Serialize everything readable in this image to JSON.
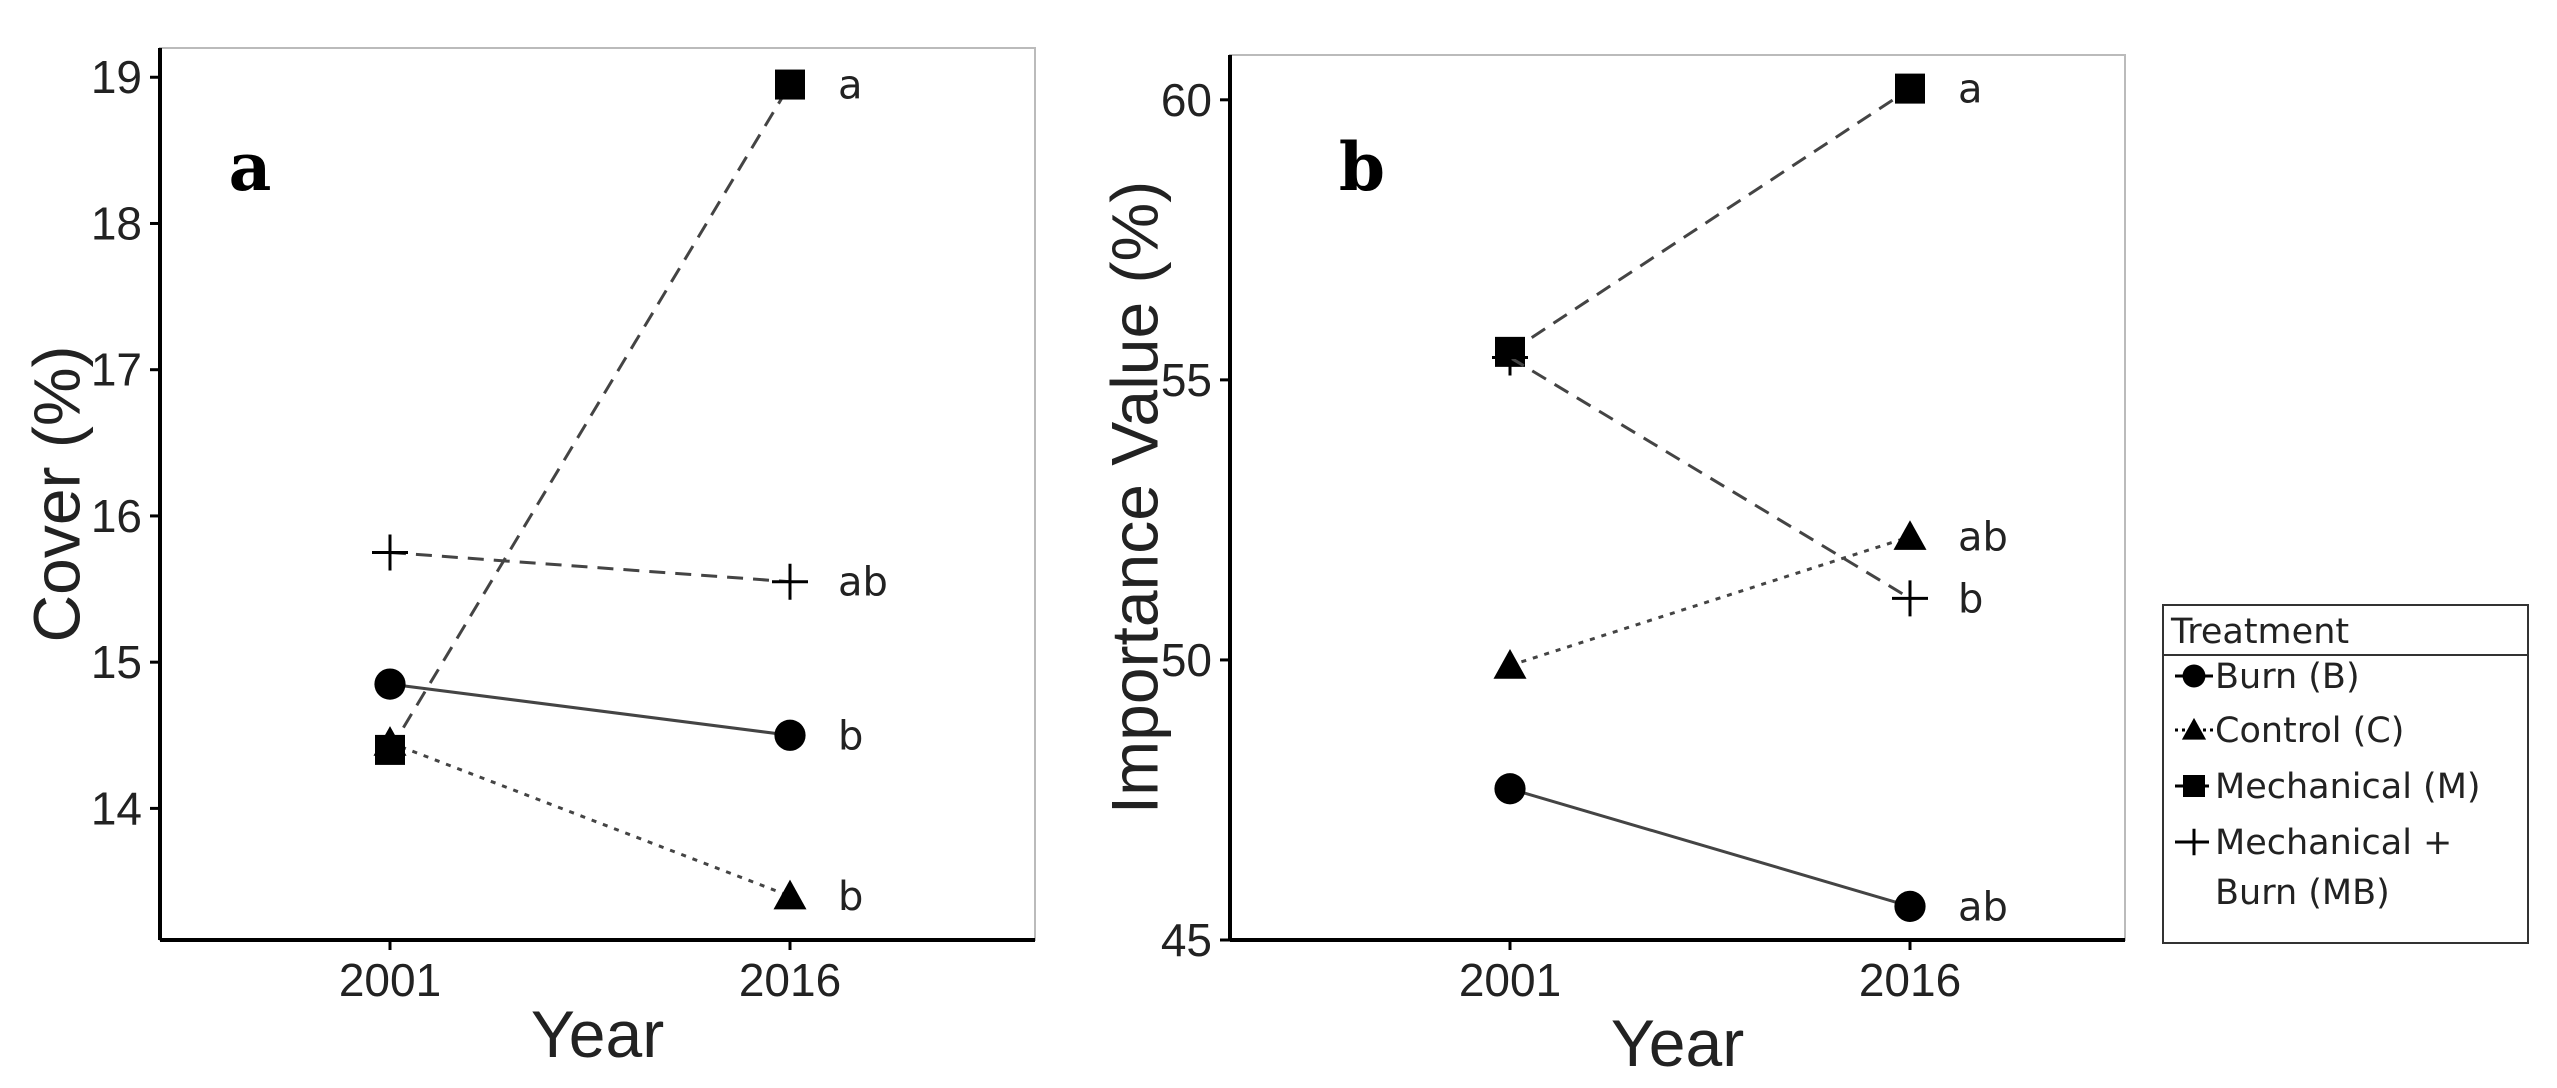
{
  "chart_data": [
    {
      "type": "line",
      "panel_label": "a",
      "xlabel": "Year",
      "ylabel": "Cover (%)",
      "categories": [
        "2001",
        "2016"
      ],
      "ylim": [
        13.1,
        19.2
      ],
      "yticks": [
        14,
        15,
        16,
        17,
        18,
        19
      ],
      "grid": false,
      "series": [
        {
          "name": "Burn (B)",
          "values": [
            14.85,
            14.5
          ],
          "marker": "circle",
          "line": "solid",
          "sig_label": "b"
        },
        {
          "name": "Control (C)",
          "values": [
            14.45,
            13.4
          ],
          "marker": "triangle",
          "line": "dotted",
          "sig_label": "b"
        },
        {
          "name": "Mechanical (M)",
          "values": [
            14.4,
            18.95
          ],
          "marker": "square",
          "line": "dashed",
          "sig_label": "a"
        },
        {
          "name": "Mechanical + Burn (MB)",
          "values": [
            15.75,
            15.55
          ],
          "marker": "plus",
          "line": "dashed",
          "sig_label": "ab"
        }
      ]
    },
    {
      "type": "line",
      "panel_label": "b",
      "xlabel": "Year",
      "ylabel": "Importance Value (%)",
      "categories": [
        "2001",
        "2016"
      ],
      "ylim": [
        45,
        60.8
      ],
      "yticks": [
        45,
        50,
        55,
        60
      ],
      "grid": false,
      "series": [
        {
          "name": "Burn (B)",
          "values": [
            47.7,
            45.6
          ],
          "marker": "circle",
          "line": "solid",
          "sig_label": "ab"
        },
        {
          "name": "Control (C)",
          "values": [
            49.9,
            52.2
          ],
          "marker": "triangle",
          "line": "dotted",
          "sig_label": "ab"
        },
        {
          "name": "Mechanical (M)",
          "values": [
            55.5,
            60.2
          ],
          "marker": "square",
          "line": "dashed",
          "sig_label": "a"
        },
        {
          "name": "Mechanical + Burn (MB)",
          "values": [
            55.4,
            51.1
          ],
          "marker": "plus",
          "line": "dashed",
          "sig_label": "b"
        }
      ]
    }
  ],
  "legend": {
    "title": "Treatment",
    "placement": "right",
    "items": [
      {
        "lines": [
          "Burn (B)"
        ],
        "marker": "circle",
        "line": "solid"
      },
      {
        "lines": [
          "Control (C)"
        ],
        "marker": "triangle",
        "line": "dotted"
      },
      {
        "lines": [
          "Mechanical (M)"
        ],
        "marker": "square",
        "line": "dashed"
      },
      {
        "lines": [
          "Mechanical +",
          "Burn (MB)"
        ],
        "marker": "plus",
        "line": "dashed"
      }
    ]
  }
}
